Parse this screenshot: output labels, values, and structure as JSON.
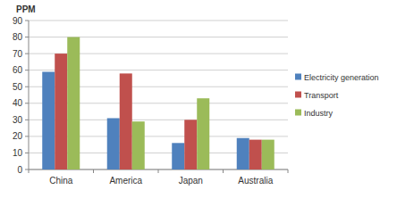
{
  "chart_data": {
    "type": "bar",
    "y_label": "PPM",
    "categories": [
      "China",
      "America",
      "Japan",
      "Australia"
    ],
    "series": [
      {
        "name": "Electricity generation",
        "color": "#4f81bd",
        "values": [
          59,
          31,
          16,
          19
        ]
      },
      {
        "name": "Transport",
        "color": "#c0504d",
        "values": [
          70,
          58,
          30,
          18
        ]
      },
      {
        "name": "Industry",
        "color": "#9bbb59",
        "values": [
          80,
          29,
          43,
          18
        ]
      }
    ],
    "ylim": [
      0,
      90
    ],
    "yticks": [
      0,
      10,
      20,
      30,
      40,
      50,
      60,
      70,
      80,
      90
    ],
    "grid": true,
    "legend": "right"
  }
}
